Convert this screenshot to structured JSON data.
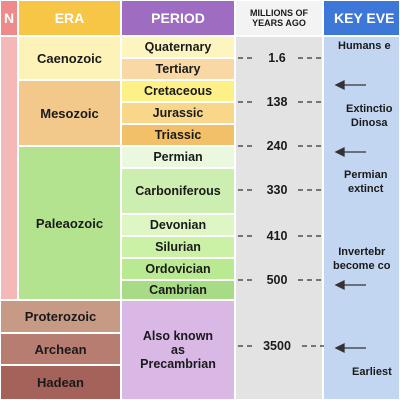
{
  "header": {
    "eon": "N",
    "era": "ERA",
    "period": "PERIOD",
    "mya": "MILLIONS OF\nYEARS AGO",
    "events": "KEY EVE"
  },
  "eras": [
    {
      "name": "Caenozoic",
      "color": "#fdf2b7"
    },
    {
      "name": "Mesozoic",
      "color": "#f2c98a"
    },
    {
      "name": "Paleaozoic",
      "color": "#b4e38f"
    },
    {
      "name": "Proterozoic",
      "color": "#c79a86"
    },
    {
      "name": "Archean",
      "color": "#b77d71"
    },
    {
      "name": "Hadean",
      "color": "#a4625a"
    }
  ],
  "periods": [
    {
      "name": "Quaternary",
      "color": "#fdf5c0"
    },
    {
      "name": "Tertiary",
      "color": "#fad8a6"
    },
    {
      "name": "Cretaceous",
      "color": "#fdf087"
    },
    {
      "name": "Jurassic",
      "color": "#f8d78a"
    },
    {
      "name": "Triassic",
      "color": "#f2c068"
    },
    {
      "name": "Permian",
      "color": "#eaf8de"
    },
    {
      "name": "Carboniferous",
      "color": "#cdeeb1"
    },
    {
      "name": "Devonian",
      "color": "#ddf6c3"
    },
    {
      "name": "Silurian",
      "color": "#cbf1a7"
    },
    {
      "name": "Ordovician",
      "color": "#b9ea92"
    },
    {
      "name": "Cambrian",
      "color": "#a8db85"
    }
  ],
  "precambrian": {
    "label": "Also known\nas\nPrecambrian",
    "color": "#d9b8e6"
  },
  "mya": [
    "1.6",
    "138",
    "240",
    "330",
    "410",
    "500",
    "3500"
  ],
  "events": [
    "Humans e",
    "Extinctio\nDinosa",
    "Permian\nextinct",
    "Invertebr\nbecome co",
    "Earliest"
  ],
  "colors": {
    "eon_header": "#ef8a8a",
    "eon_body": "#f4b8b8",
    "era_header": "#f8c646",
    "period_header": "#9e6cc0",
    "mya_header": "#f3f3f3",
    "mya_body": "#e3e3e3",
    "events_header": "#3d78d8",
    "events_body": "#c3d6f1",
    "eon_bottom": "#bf8a77"
  }
}
